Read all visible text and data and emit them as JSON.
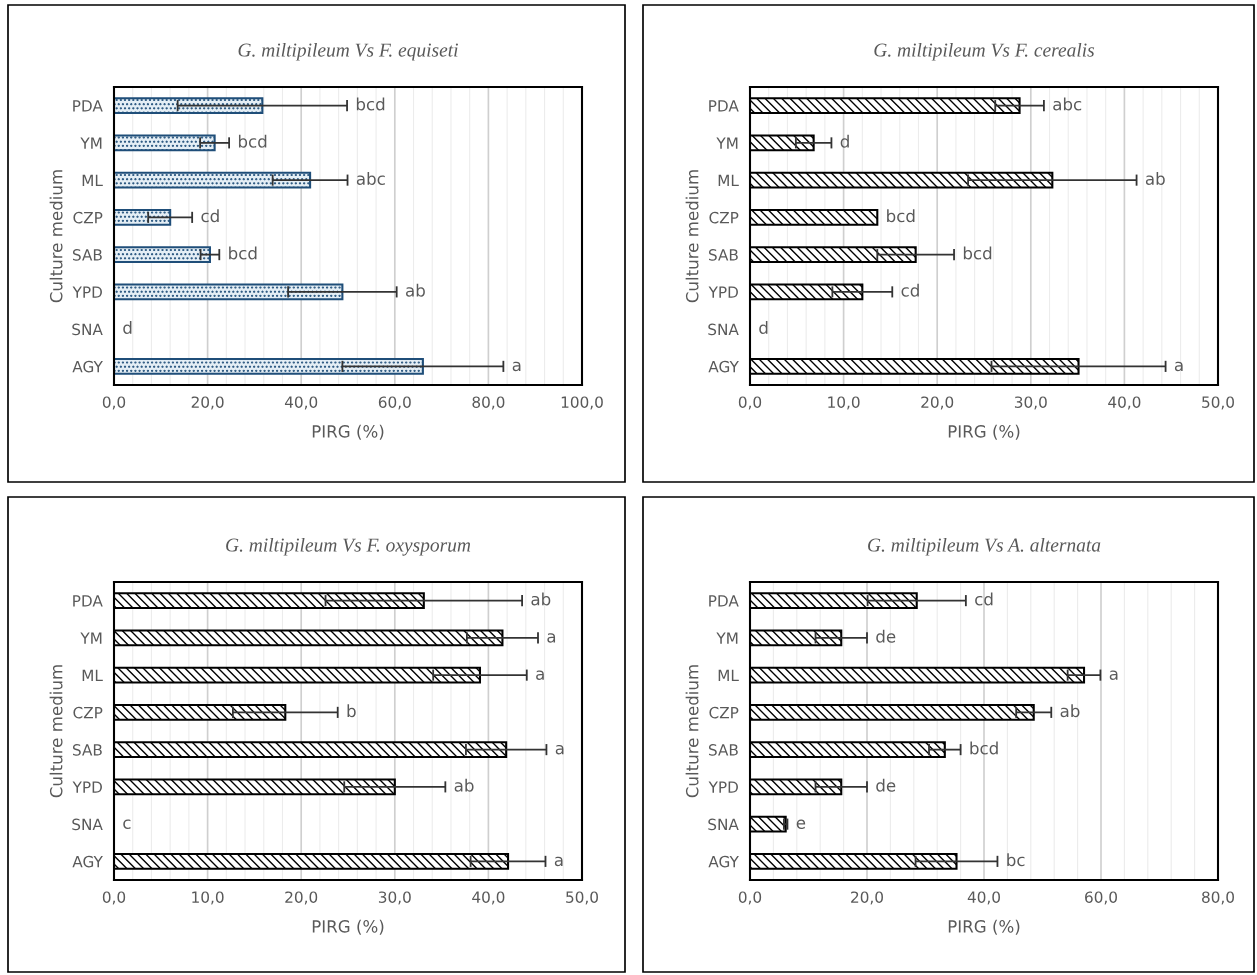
{
  "chart_data": [
    {
      "type": "bar",
      "orientation": "horizontal",
      "title": "G. miltipileum Vs F. equiseti",
      "xlabel": "PIRG (%)",
      "ylabel": "Culture medium",
      "grid": "x",
      "categories": [
        "PDA",
        "YM",
        "ML",
        "CZP",
        "SAB",
        "YPD",
        "SNA",
        "AGY"
      ],
      "series": [
        {
          "color": "#1f4e79",
          "values": [
            31.7,
            21.5,
            41.9,
            12.0,
            20.5,
            48.8,
            0,
            66.0
          ],
          "errors": [
            18.1,
            3.1,
            8.0,
            4.7,
            2.0,
            11.6,
            null,
            17.2
          ]
        }
      ],
      "xlim": [
        0,
        100
      ],
      "xticks": [
        {
          "value": 0,
          "label": "0,0"
        },
        {
          "value": 20,
          "label": "20,0"
        },
        {
          "value": 40,
          "label": "40,0"
        },
        {
          "value": 60,
          "label": "60,0"
        },
        {
          "value": 80,
          "label": "80,0"
        },
        {
          "value": 100,
          "label": "100,0"
        }
      ],
      "annotations": [
        {
          "text": "bcd",
          "x": 49.8,
          "y": "PDA"
        },
        {
          "text": "bcd",
          "x": 24.6,
          "y": "YM"
        },
        {
          "text": "abc",
          "x": 49.9,
          "y": "ML"
        },
        {
          "text": "cd",
          "x": 16.7,
          "y": "CZP"
        },
        {
          "text": "bcd",
          "x": 22.5,
          "y": "SAB"
        },
        {
          "text": "ab",
          "x": 60.4,
          "y": "YPD"
        },
        {
          "text": "d",
          "x": 0,
          "y": "SNA"
        },
        {
          "text": "a",
          "x": 83.2,
          "y": "AGY"
        }
      ]
    },
    {
      "type": "bar",
      "orientation": "horizontal",
      "title": "G. miltipileum Vs F. cerealis",
      "xlabel": "PIRG (%)",
      "ylabel": "Culture medium",
      "grid": "x",
      "categories": [
        "PDA",
        "YM",
        "ML",
        "CZP",
        "SAB",
        "YPD",
        "SNA",
        "AGY"
      ],
      "series": [
        {
          "color": "#000000",
          "values": [
            28.8,
            6.8,
            32.3,
            13.6,
            17.7,
            12.0,
            0,
            35.1
          ],
          "errors": [
            2.6,
            1.9,
            9.0,
            null,
            4.1,
            3.2,
            null,
            9.3
          ]
        }
      ],
      "xlim": [
        0,
        50
      ],
      "xticks": [
        {
          "value": 0,
          "label": "0,0"
        },
        {
          "value": 10,
          "label": "10,0"
        },
        {
          "value": 20,
          "label": "20,0"
        },
        {
          "value": 30,
          "label": "30,0"
        },
        {
          "value": 40,
          "label": "40,0"
        },
        {
          "value": 50,
          "label": "50,0"
        }
      ],
      "annotations": [
        {
          "text": "abc",
          "x": 31.4,
          "y": "PDA"
        },
        {
          "text": "d",
          "x": 8.7,
          "y": "YM"
        },
        {
          "text": "ab",
          "x": 41.3,
          "y": "ML"
        },
        {
          "text": "bcd",
          "x": 13.6,
          "y": "CZP"
        },
        {
          "text": "bcd",
          "x": 21.8,
          "y": "SAB"
        },
        {
          "text": "cd",
          "x": 15.2,
          "y": "YPD"
        },
        {
          "text": "d",
          "x": 0,
          "y": "SNA"
        },
        {
          "text": "a",
          "x": 44.4,
          "y": "AGY"
        }
      ]
    },
    {
      "type": "bar",
      "orientation": "horizontal",
      "title": "G. miltipileum Vs F. oxysporum",
      "xlabel": "PIRG (%)",
      "ylabel": "Culture medium",
      "grid": "x",
      "categories": [
        "PDA",
        "YM",
        "ML",
        "CZP",
        "SAB",
        "YPD",
        "SNA",
        "AGY"
      ],
      "series": [
        {
          "color": "#000000",
          "values": [
            33.1,
            41.5,
            39.1,
            18.3,
            41.9,
            30.0,
            0,
            42.1
          ],
          "errors": [
            10.5,
            3.8,
            5.0,
            5.6,
            4.3,
            5.4,
            null,
            4.0
          ]
        }
      ],
      "xlim": [
        0,
        50
      ],
      "xticks": [
        {
          "value": 0,
          "label": "0,0"
        },
        {
          "value": 10,
          "label": "10,0"
        },
        {
          "value": 20,
          "label": "20,0"
        },
        {
          "value": 30,
          "label": "30,0"
        },
        {
          "value": 40,
          "label": "40,0"
        },
        {
          "value": 50,
          "label": "50,0"
        }
      ],
      "annotations": [
        {
          "text": "ab",
          "x": 43.6,
          "y": "PDA"
        },
        {
          "text": "a",
          "x": 45.3,
          "y": "YM"
        },
        {
          "text": "a",
          "x": 44.1,
          "y": "ML"
        },
        {
          "text": "b",
          "x": 23.9,
          "y": "CZP"
        },
        {
          "text": "a",
          "x": 46.2,
          "y": "SAB"
        },
        {
          "text": "ab",
          "x": 35.4,
          "y": "YPD"
        },
        {
          "text": "c",
          "x": 0,
          "y": "SNA"
        },
        {
          "text": "a",
          "x": 46.1,
          "y": "AGY"
        }
      ]
    },
    {
      "type": "bar",
      "orientation": "horizontal",
      "title": "G. miltipileum Vs A. alternata",
      "xlabel": "PIRG (%)",
      "ylabel": "Culture medium",
      "grid": "x",
      "categories": [
        "PDA",
        "YM",
        "ML",
        "CZP",
        "SAB",
        "YPD",
        "SNA",
        "AGY"
      ],
      "series": [
        {
          "color": "#000000",
          "values": [
            28.5,
            15.6,
            57.1,
            48.5,
            33.3,
            15.6,
            6.1,
            35.3
          ],
          "errors": [
            8.4,
            4.4,
            2.8,
            3.0,
            2.7,
            4.4,
            0.3,
            7.0
          ]
        }
      ],
      "xlim": [
        0,
        80
      ],
      "xticks": [
        {
          "value": 0,
          "label": "0,0"
        },
        {
          "value": 20,
          "label": "20,0"
        },
        {
          "value": 40,
          "label": "40,0"
        },
        {
          "value": 60,
          "label": "60,0"
        },
        {
          "value": 80,
          "label": "80,0"
        }
      ],
      "annotations": [
        {
          "text": "cd",
          "x": 36.9,
          "y": "PDA"
        },
        {
          "text": "de",
          "x": 20.0,
          "y": "YM"
        },
        {
          "text": "a",
          "x": 59.9,
          "y": "ML"
        },
        {
          "text": "ab",
          "x": 51.5,
          "y": "CZP"
        },
        {
          "text": "bcd",
          "x": 36.0,
          "y": "SAB"
        },
        {
          "text": "de",
          "x": 20.0,
          "y": "YPD"
        },
        {
          "text": "e",
          "x": 6.4,
          "y": "SNA"
        },
        {
          "text": "bc",
          "x": 42.3,
          "y": "AGY"
        }
      ]
    }
  ]
}
